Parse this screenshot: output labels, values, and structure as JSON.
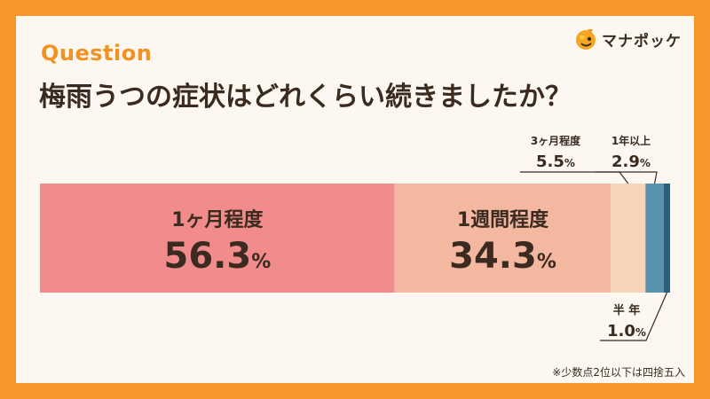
{
  "header": {
    "question": "Question",
    "title": "梅雨うつの症状はどれくらい続きましたか？"
  },
  "logo": {
    "text": "マナポッケ"
  },
  "footnote": "※少数点2位以下は四捨五入",
  "colors": {
    "background": "#f7962a",
    "card": "#fcf8f1",
    "text": "#3a2a1f",
    "accent": "#f29223"
  },
  "chart_data": {
    "type": "bar",
    "orientation": "horizontal-stacked-100",
    "unit": "%",
    "categories": [
      "1ヶ月程度",
      "1週間程度",
      "3ヶ月程度",
      "1年以上",
      "半 年"
    ],
    "values": [
      56.3,
      34.3,
      5.5,
      2.9,
      1.0
    ],
    "colors": [
      "#f28c8c",
      "#f4b7a0",
      "#f6d5b8",
      "#5892ae",
      "#2f5f78"
    ],
    "label_placement": [
      "inside",
      "inside",
      "above-callout",
      "above-callout",
      "below-callout"
    ]
  }
}
